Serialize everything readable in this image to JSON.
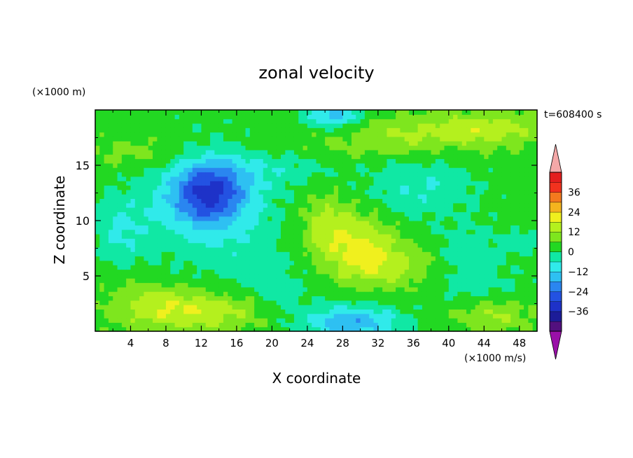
{
  "chart_data": {
    "type": "heatmap",
    "title": "zonal velocity",
    "xlabel": "X coordinate",
    "ylabel": "Z coordinate",
    "y_unit": "(×1000 m)",
    "x_unit": "(×1000 m/s)",
    "time_label": "t=608400 s",
    "xlim": [
      0,
      50
    ],
    "ylim": [
      0,
      20
    ],
    "x_ticks": [
      4,
      8,
      12,
      16,
      20,
      24,
      28,
      32,
      36,
      40,
      44,
      48
    ],
    "y_ticks": [
      5,
      10,
      15
    ],
    "colorbar": {
      "ticks": [
        "36",
        "24",
        "12",
        "0",
        "−12",
        "−24",
        "−36"
      ],
      "levels": [
        -42,
        -36,
        -30,
        -24,
        -18,
        -12,
        -6,
        0,
        6,
        12,
        18,
        24,
        30,
        36,
        42
      ],
      "colors": [
        "#52107e",
        "#1c1c98",
        "#1e32c8",
        "#2352e2",
        "#2a86f0",
        "#2ec0f2",
        "#30eaea",
        "#10e8a4",
        "#22d822",
        "#7ee61e",
        "#b4f01e",
        "#f0f01e",
        "#f4b41e",
        "#f47a1e",
        "#f2321e",
        "#e41e1e"
      ],
      "over_color": "#f4a8a8",
      "under_color": "#9a10a8"
    },
    "features": [
      {
        "x": 13,
        "z": 12.5,
        "sx": 4.2,
        "sz": 2.8,
        "u": -27
      },
      {
        "x": 12,
        "z": 11.5,
        "sx": 8,
        "sz": 5,
        "u": -10
      },
      {
        "x": 30,
        "z": 7.5,
        "sx": 4,
        "sz": 3,
        "u": 14
      },
      {
        "x": 26,
        "z": 9.5,
        "sx": 3,
        "sz": 3,
        "u": 10
      },
      {
        "x": 34,
        "z": 6,
        "sx": 5,
        "sz": 2,
        "u": 9
      },
      {
        "x": 29,
        "z": 0.8,
        "sx": 5.5,
        "sz": 1.6,
        "u": -20
      },
      {
        "x": 12,
        "z": 1.8,
        "sx": 7,
        "sz": 1.8,
        "u": 13
      },
      {
        "x": 6,
        "z": 2.5,
        "sx": 5,
        "sz": 2,
        "u": 8
      },
      {
        "x": 45,
        "z": 1.5,
        "sx": 4,
        "sz": 1.5,
        "u": 10
      },
      {
        "x": 44,
        "z": 18.3,
        "sx": 7,
        "sz": 1.5,
        "u": 13
      },
      {
        "x": 34,
        "z": 17.8,
        "sx": 6,
        "sz": 1.5,
        "u": 7
      },
      {
        "x": 27,
        "z": 19.5,
        "sx": 3,
        "sz": 1,
        "u": -18
      },
      {
        "x": 37,
        "z": 13,
        "sx": 6,
        "sz": 2.5,
        "u": -9
      },
      {
        "x": 48,
        "z": 8,
        "sx": 2,
        "sz": 1,
        "u": -8
      },
      {
        "x": 20,
        "z": 15,
        "sx": 8,
        "sz": 2,
        "u": -6
      },
      {
        "x": 25,
        "z": 16.5,
        "sx": 14,
        "sz": 1.3,
        "u": 4
      },
      {
        "x": 5,
        "z": 16,
        "sx": 6,
        "sz": 1.5,
        "u": 6
      },
      {
        "x": 18,
        "z": 6,
        "sx": 6,
        "sz": 3,
        "u": -4
      },
      {
        "x": 42,
        "z": 7,
        "sx": 4,
        "sz": 3,
        "u": -7
      },
      {
        "x": 3,
        "z": 9,
        "sx": 3,
        "sz": 3,
        "u": -8
      },
      {
        "x": 44,
        "z": 4,
        "sx": 6,
        "sz": 1.5,
        "u": -4
      },
      {
        "x": 21,
        "z": 3.5,
        "sx": 3,
        "sz": 2,
        "u": -5
      }
    ]
  }
}
